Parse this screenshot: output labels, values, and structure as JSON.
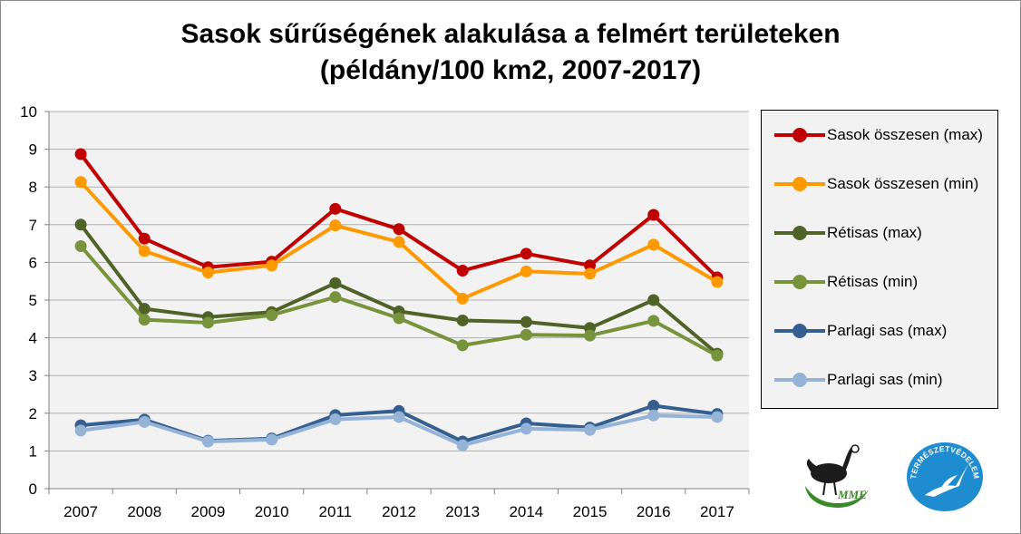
{
  "chart_data": {
    "type": "line",
    "title_line1": "Sasok sűrűségének alakulása a felmért területeken",
    "title_line2": "(példány/100 km2, 2007-2017)",
    "categories": [
      "2007",
      "2008",
      "2009",
      "2010",
      "2011",
      "2012",
      "2013",
      "2014",
      "2015",
      "2016",
      "2017"
    ],
    "ylim": [
      0,
      10
    ],
    "yticks": [
      "0",
      "1",
      "2",
      "3",
      "4",
      "5",
      "6",
      "7",
      "8",
      "9",
      "10"
    ],
    "grid": true,
    "legend_position": "right",
    "series": [
      {
        "name": "Sasok összesen (max)",
        "color": "#c00000",
        "values": [
          8.87,
          6.63,
          5.87,
          6.02,
          7.42,
          6.88,
          5.78,
          6.23,
          5.92,
          7.26,
          5.6
        ]
      },
      {
        "name": "Sasok összesen (min)",
        "color": "#ff9900",
        "values": [
          8.13,
          6.3,
          5.73,
          5.92,
          6.98,
          6.54,
          5.04,
          5.76,
          5.7,
          6.47,
          5.48
        ]
      },
      {
        "name": "Rétisas (max)",
        "color": "#4f6228",
        "values": [
          7.0,
          4.77,
          4.55,
          4.68,
          5.45,
          4.7,
          4.46,
          4.42,
          4.26,
          5.0,
          3.58
        ]
      },
      {
        "name": "Rétisas (min)",
        "color": "#77933c",
        "values": [
          6.43,
          4.48,
          4.4,
          4.6,
          5.08,
          4.52,
          3.8,
          4.08,
          4.06,
          4.45,
          3.53
        ]
      },
      {
        "name": "Parlagi sas (max)",
        "color": "#365f91",
        "values": [
          1.68,
          1.83,
          1.27,
          1.33,
          1.95,
          2.06,
          1.25,
          1.73,
          1.62,
          2.2,
          1.98
        ]
      },
      {
        "name": "Parlagi sas (min)",
        "color": "#95b3d7",
        "values": [
          1.54,
          1.77,
          1.25,
          1.3,
          1.84,
          1.9,
          1.15,
          1.59,
          1.56,
          1.94,
          1.9
        ]
      }
    ]
  },
  "logos": {
    "mme": {
      "text": "MME",
      "icon": "bird-icon"
    },
    "termeszetvedelem": {
      "text": "TERMÉSZETVÉDELEM",
      "icon": "crane-icon"
    }
  }
}
